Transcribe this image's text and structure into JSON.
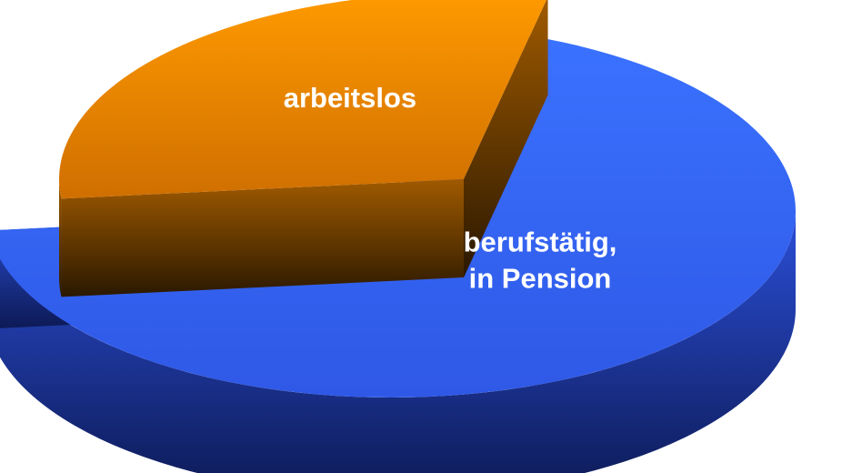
{
  "chart_data": {
    "type": "pie",
    "title": "",
    "exploded": true,
    "three_d": true,
    "categories": [
      "berufstätig,\nin Pension",
      "arbeitslos"
    ],
    "values": [
      70,
      30
    ],
    "colors": [
      "#3366ff",
      "#ff9900"
    ],
    "side_colors": [
      "#0e1a50",
      "#3a2400"
    ],
    "legend": "none"
  }
}
